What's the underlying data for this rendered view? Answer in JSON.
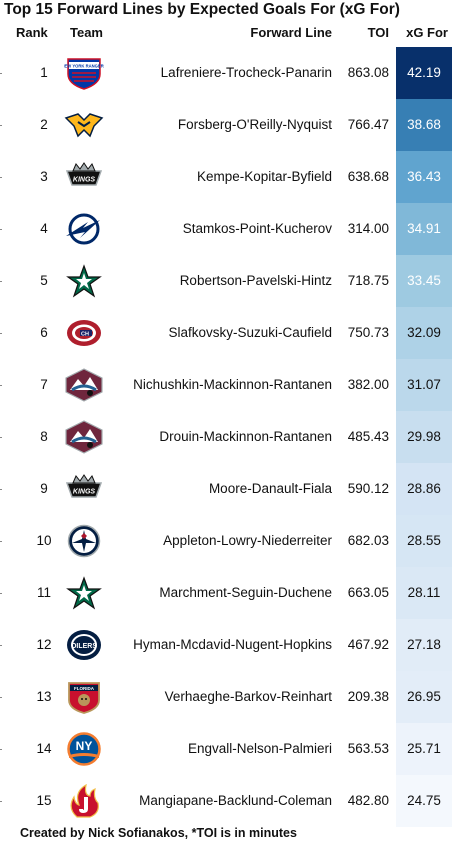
{
  "title": "Top 15 Forward Lines by Expected Goals For (xG For)",
  "headers": {
    "rank": "Rank",
    "team": "Team",
    "line": "Forward Line",
    "toi": "TOI",
    "xg": "xG For"
  },
  "footer": "Created by Nick Sofianakos, *TOI is in minutes",
  "chart_data": {
    "type": "table",
    "title": "Top 15 Forward Lines by Expected Goals For (xG For)",
    "columns": [
      "Rank",
      "Team",
      "Forward Line",
      "TOI",
      "xG For"
    ],
    "rows": [
      {
        "rank": "1",
        "team_logo": "new-york-rangers-logo",
        "line": "Lafreniere-Trocheck-Panarin",
        "toi": "863.08",
        "xg": "42.19"
      },
      {
        "rank": "2",
        "team_logo": "nashville-predators-logo",
        "line": "Forsberg-O'Reilly-Nyquist",
        "toi": "766.47",
        "xg": "38.68"
      },
      {
        "rank": "3",
        "team_logo": "los-angeles-kings-logo",
        "line": "Kempe-Kopitar-Byfield",
        "toi": "638.68",
        "xg": "36.43"
      },
      {
        "rank": "4",
        "team_logo": "tampa-bay-lightning-logo",
        "line": "Stamkos-Point-Kucherov",
        "toi": "314.00",
        "xg": "34.91"
      },
      {
        "rank": "5",
        "team_logo": "dallas-stars-logo",
        "line": "Robertson-Pavelski-Hintz",
        "toi": "718.75",
        "xg": "33.45"
      },
      {
        "rank": "6",
        "team_logo": "montreal-canadiens-logo",
        "line": "Slafkovsky-Suzuki-Caufield",
        "toi": "750.73",
        "xg": "32.09"
      },
      {
        "rank": "7",
        "team_logo": "colorado-avalanche-logo",
        "line": "Nichushkin-Mackinnon-Rantanen",
        "toi": "382.00",
        "xg": "31.07"
      },
      {
        "rank": "8",
        "team_logo": "colorado-avalanche-logo",
        "line": "Drouin-Mackinnon-Rantanen",
        "toi": "485.43",
        "xg": "29.98"
      },
      {
        "rank": "9",
        "team_logo": "los-angeles-kings-logo",
        "line": "Moore-Danault-Fiala",
        "toi": "590.12",
        "xg": "28.86"
      },
      {
        "rank": "10",
        "team_logo": "winnipeg-jets-logo",
        "line": "Appleton-Lowry-Niederreiter",
        "toi": "682.03",
        "xg": "28.55"
      },
      {
        "rank": "11",
        "team_logo": "dallas-stars-logo",
        "line": "Marchment-Seguin-Duchene",
        "toi": "663.05",
        "xg": "28.11"
      },
      {
        "rank": "12",
        "team_logo": "edmonton-oilers-logo",
        "line": "Hyman-Mcdavid-Nugent-Hopkins",
        "toi": "467.92",
        "xg": "27.18"
      },
      {
        "rank": "13",
        "team_logo": "florida-panthers-logo",
        "line": "Verhaeghe-Barkov-Reinhart",
        "toi": "209.38",
        "xg": "26.95"
      },
      {
        "rank": "14",
        "team_logo": "new-york-islanders-logo",
        "line": "Engvall-Nelson-Palmieri",
        "toi": "563.53",
        "xg": "25.71"
      },
      {
        "rank": "15",
        "team_logo": "calgary-flames-logo",
        "line": "Mangiapane-Backlund-Coleman",
        "toi": "482.80",
        "xg": "24.75"
      }
    ],
    "color_scale": {
      "low": "#f4f8fd",
      "high": "#08306b",
      "cmap": "blues"
    },
    "logo_text": {
      "new-york-rangers-logo": "NEW YORK RANGERS",
      "los-angeles-kings-logo": "KINGS",
      "edmonton-oilers-logo": "OILERS",
      "new-york-islanders-logo": "NY",
      "montreal-canadiens-logo": "CH",
      "florida-panthers-logo": "FLORIDA"
    }
  }
}
